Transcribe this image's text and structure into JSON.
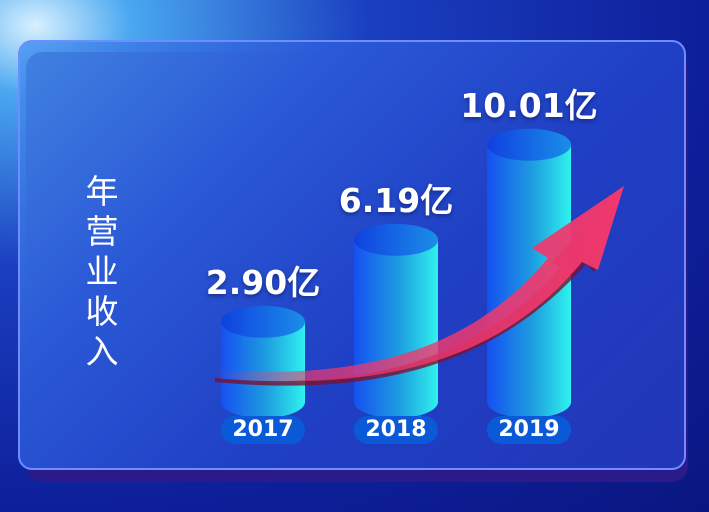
{
  "chart_data": {
    "type": "bar",
    "ylabel": "年营业收入",
    "categories": [
      "2017",
      "2018",
      "2019"
    ],
    "values": [
      2.9,
      6.19,
      10.01
    ],
    "labels": [
      "2.90亿",
      "6.19亿",
      "10.01亿"
    ],
    "bar_style": "3d-cylinder",
    "trend_arrow": true,
    "colors": {
      "bar_left": "#1550f0",
      "bar_right": "#2ff2ee",
      "arrow": "#f0386e",
      "pill": "#0a5ad8"
    }
  }
}
